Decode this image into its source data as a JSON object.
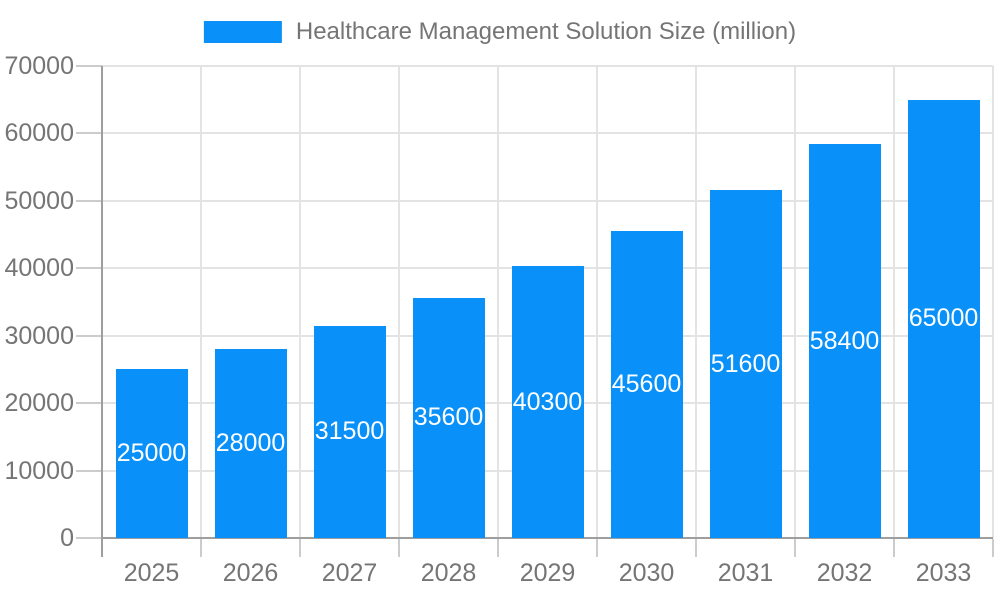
{
  "chart_data": {
    "type": "bar",
    "title": "Healthcare Management Solution Size (million)",
    "categories": [
      "2025",
      "2026",
      "2027",
      "2028",
      "2029",
      "2030",
      "2031",
      "2032",
      "2033"
    ],
    "values": [
      25000,
      28000,
      31500,
      35600,
      40300,
      45600,
      51600,
      58400,
      65000
    ],
    "data_labels": [
      "25000",
      "28000",
      "31500",
      "35600",
      "40300",
      "45600",
      "51600",
      "58400",
      "65000"
    ],
    "xlabel": "",
    "ylabel": "",
    "ylim": [
      0,
      70000
    ],
    "ytick_step": 10000,
    "y_tick_labels": [
      "0",
      "10000",
      "20000",
      "30000",
      "40000",
      "50000",
      "60000",
      "70000"
    ],
    "grid": true,
    "legend_position": "top-center",
    "colors": {
      "bar": "#0991f9",
      "bar_label_text": "#ffffff",
      "axis_line": "#9e9e9e",
      "gridline": "#e3e3e3",
      "tick_mark": "#cccccc",
      "tick_text": "#757575",
      "legend_text": "#757575",
      "background": "#ffffff"
    }
  }
}
